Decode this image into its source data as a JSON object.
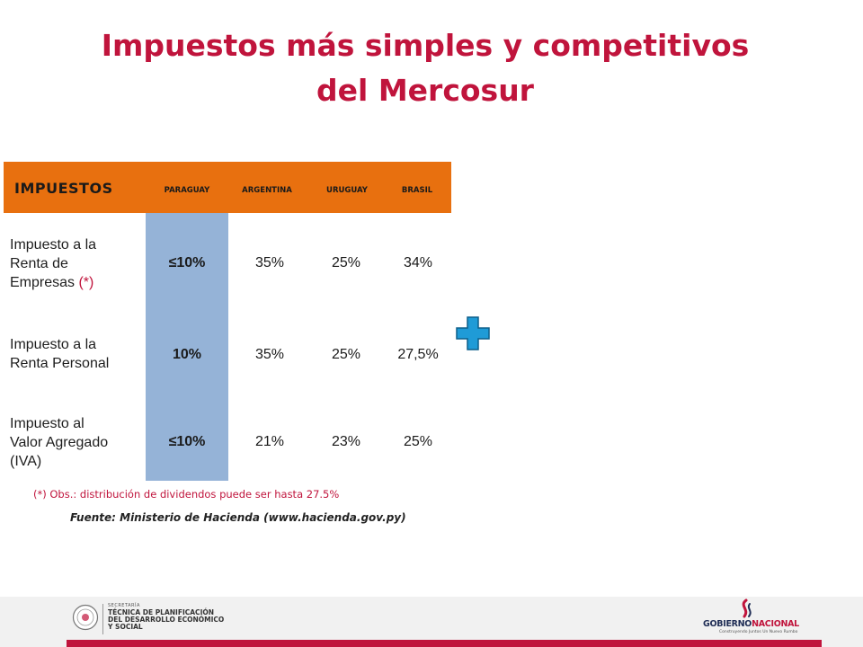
{
  "title": {
    "line1": "Impuestos más simples y competitivos",
    "line2": "del Mercosur"
  },
  "table": {
    "header": {
      "main": "IMPUESTOS",
      "columns": [
        "PARAGUAY",
        "ARGENTINA",
        "URUGUAY",
        "BRASIL"
      ]
    },
    "rows": [
      {
        "label_lines": [
          "Impuesto a la",
          "Renta de",
          "Empresas "
        ],
        "asterisk": "(*)",
        "values": [
          "≤10%",
          "35%",
          "25%",
          "34%"
        ]
      },
      {
        "label_lines": [
          "Impuesto a la",
          "Renta Personal"
        ],
        "values": [
          "10%",
          "35%",
          "25%",
          "27,5%"
        ]
      },
      {
        "label_lines": [
          "Impuesto al",
          "Valor Agregado",
          "(IVA)"
        ],
        "values": [
          "≤10%",
          "21%",
          "23%",
          "25%"
        ]
      }
    ]
  },
  "plus_icon": "plus-icon",
  "note": "(*) Obs.:  distribución de dividendos puede ser hasta 27.5%",
  "source": "Fuente: Ministerio de Hacienda (www.hacienda.gov.py)",
  "footer": {
    "stp": {
      "line1": "SECRETARÍA",
      "line2": "TÉCNICA DE PLANIFICACIÓN",
      "line3": "DEL DESARROLLO ECONÓMICO",
      "line4": "Y SOCIAL"
    },
    "gobierno": {
      "part1": "GOBIERNO",
      "part2": "NACIONAL",
      "tagline": "Construyendo Juntos Un Nuevo Rumbo"
    }
  },
  "colors": {
    "title": "#c0143c",
    "header_bg": "#e8700f",
    "paraguay_col": "#95b3d7",
    "plus_fill": "#1f9bd7",
    "footer_bar": "#c0143c"
  }
}
